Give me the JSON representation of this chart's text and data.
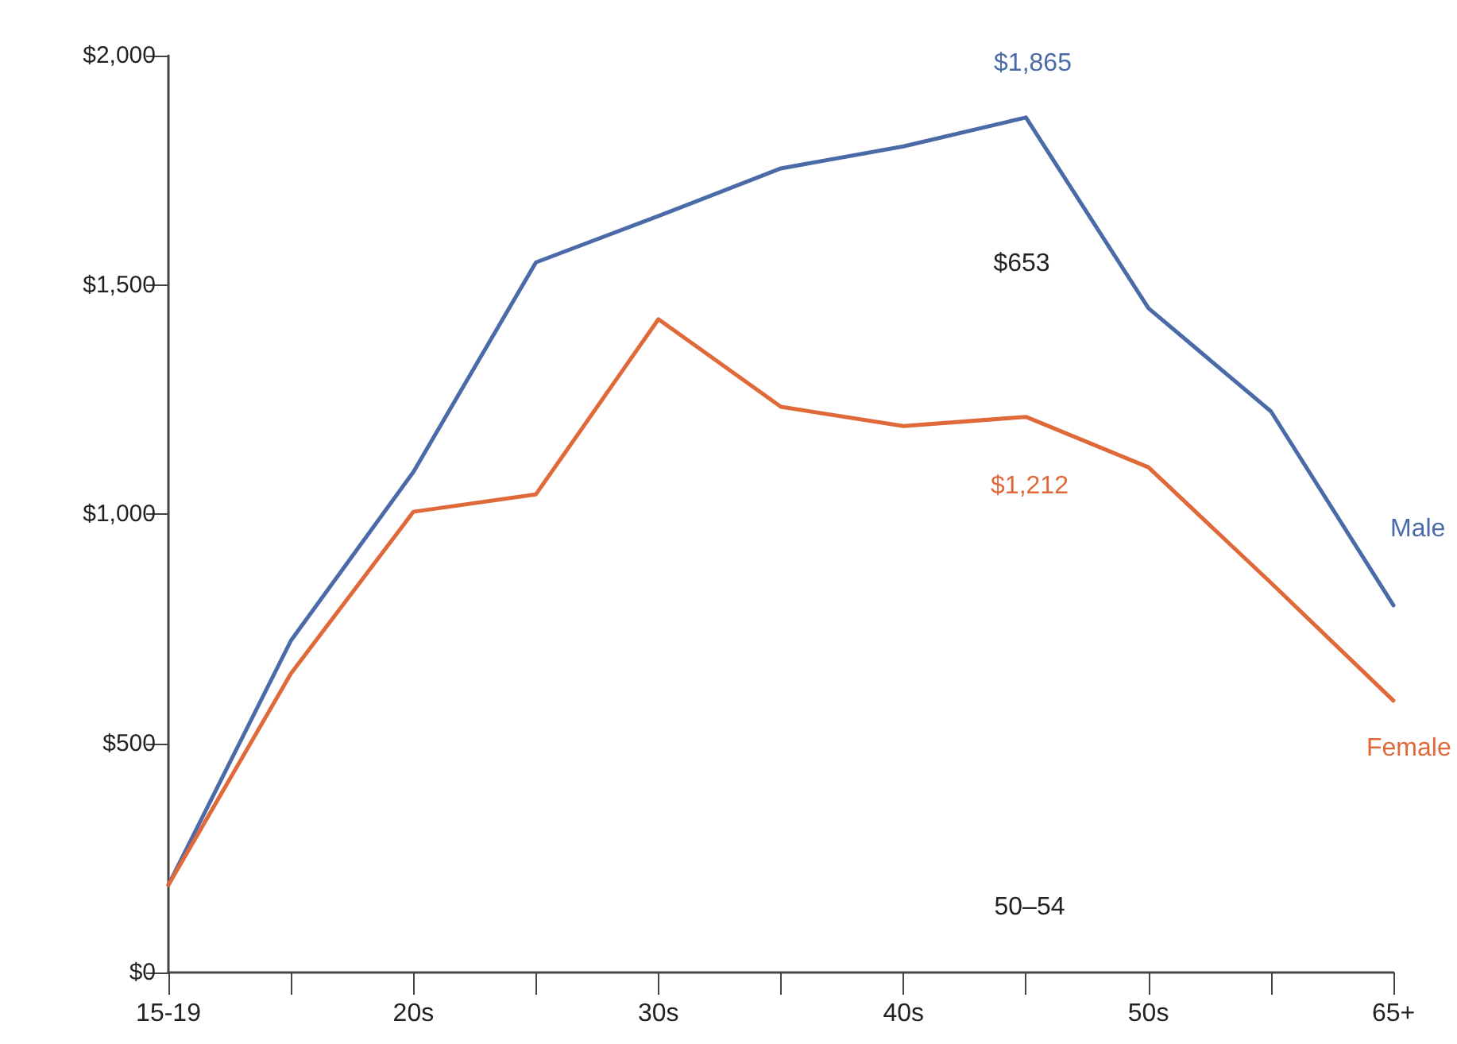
{
  "chart_data": {
    "type": "line",
    "categories": [
      "15-19",
      null,
      "20s",
      null,
      "30s",
      null,
      "40s",
      null,
      "50s",
      null,
      "65+"
    ],
    "series": [
      {
        "name": "Male",
        "color": "#4a6aa8",
        "values": [
          191,
          724,
          1092,
          1549,
          1650,
          1754,
          1802,
          1865,
          1449,
          1224,
          801
        ]
      },
      {
        "name": "Female",
        "color": "#e0693a",
        "values": [
          191,
          652,
          1005,
          1043,
          1425,
          1234,
          1192,
          1212,
          1102,
          850,
          593
        ]
      }
    ],
    "ylim": [
      0,
      2000
    ],
    "yticks": [
      {
        "value": 0,
        "label": "$0"
      },
      {
        "value": 500,
        "label": "$500"
      },
      {
        "value": 1000,
        "label": "$1,000"
      },
      {
        "value": 1500,
        "label": "$1,500"
      },
      {
        "value": 2000,
        "label": "$2,000"
      }
    ],
    "annotations": [
      "$1,865",
      "$653",
      "$1,212",
      "50–54"
    ],
    "grid": false,
    "legend": false,
    "marker": "none",
    "line_style": "solid"
  }
}
